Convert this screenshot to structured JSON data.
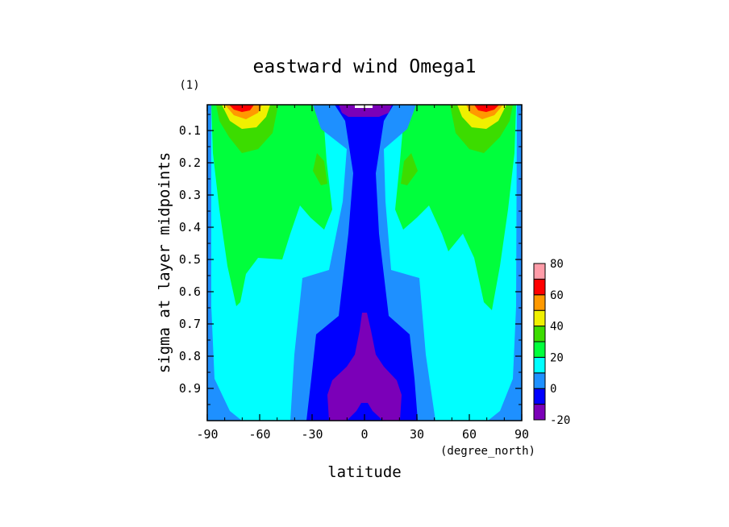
{
  "chart_data": {
    "type": "contour",
    "title": "eastward wind Omega1",
    "units_label": "(1)",
    "xlabel": "latitude",
    "xunits": "(degree_north)",
    "ylabel": "sigma at layer midpoints",
    "xlim": [
      -90,
      90
    ],
    "ylim": [
      1.0,
      0.02
    ],
    "y_inverted": true,
    "x_ticks": [
      "-90",
      "-60",
      "-30",
      "0",
      "30",
      "60",
      "90"
    ],
    "y_ticks": [
      "0.1",
      "0.2",
      "0.3",
      "0.4",
      "0.5",
      "0.6",
      "0.7",
      "0.8",
      "0.9"
    ],
    "x_tick_values": [
      -90,
      -60,
      -30,
      0,
      30,
      60,
      90
    ],
    "y_tick_values": [
      0.1,
      0.2,
      0.3,
      0.4,
      0.5,
      0.6,
      0.7,
      0.8,
      0.9
    ],
    "colorbar": {
      "levels": [
        -20,
        -10,
        0,
        10,
        20,
        30,
        40,
        50,
        60,
        70,
        80
      ],
      "labels": [
        "80",
        "60",
        "40",
        "20",
        "0",
        "-20"
      ],
      "label_values": [
        80,
        60,
        40,
        20,
        0,
        -20
      ],
      "colors": [
        "#7b00b8",
        "#0000ff",
        "#1e90ff",
        "#00ffff",
        "#00ff3c",
        "#3cdc00",
        "#f0f000",
        "#ff9900",
        "#ff0000",
        "#ff9ca8"
      ]
    },
    "features": [
      {
        "name": "westerly jet SH",
        "lat": -70,
        "sigma": 0.05,
        "max": 70
      },
      {
        "name": "westerly jet NH",
        "lat": 68,
        "sigma": 0.05,
        "max": 70
      },
      {
        "name": "equatorial easterlies",
        "lat": 0,
        "sigma": 0.9,
        "min": -20
      }
    ]
  }
}
